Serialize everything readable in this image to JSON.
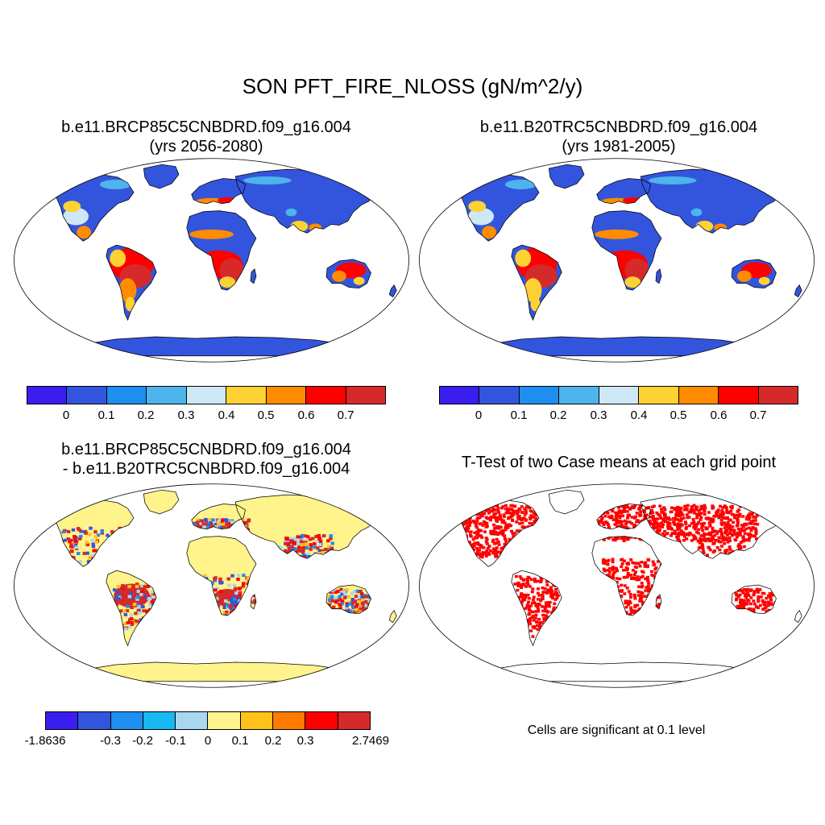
{
  "main_title": "SON PFT_FIRE_NLOSS (gN/m^2/y)",
  "colors": {
    "seq": [
      "#3a1ef0",
      "#3355dd",
      "#1e8ef0",
      "#4db4ec",
      "#cfe8f8",
      "#ffd233",
      "#ff8c00",
      "#ff0000",
      "#d62a2a"
    ],
    "diff": [
      "#3a1ef0",
      "#3355dd",
      "#1e8ef0",
      "#18b8f0",
      "#a8d8f0",
      "#fff48c",
      "#ffc21a",
      "#ff7a00",
      "#ff0000",
      "#d62a2a"
    ],
    "sig": "#ff0000",
    "land_base_seq": "#3355dd",
    "land_base_diff": "#fff48c"
  },
  "panels": {
    "top_left": {
      "title_line1": "b.e11.BRCP85C5CNBDRD.f09_g16.004",
      "title_line2": "(yrs 2056-2080)",
      "ticks": [
        "0",
        "0.1",
        "0.2",
        "0.3",
        "0.4",
        "0.5",
        "0.6",
        "0.7"
      ]
    },
    "top_right": {
      "title_line1": "b.e11.B20TRC5CNBDRD.f09_g16.004",
      "title_line2": "(yrs 1981-2005)",
      "ticks": [
        "0",
        "0.1",
        "0.2",
        "0.3",
        "0.4",
        "0.5",
        "0.6",
        "0.7"
      ]
    },
    "bottom_left": {
      "title_line1": "b.e11.BRCP85C5CNBDRD.f09_g16.004",
      "title_line2": "- b.e11.B20TRC5CNBDRD.f09_g16.004",
      "ticks": [
        "-1.8636",
        "-0.3",
        "-0.2",
        "-0.1",
        "0",
        "0.1",
        "0.2",
        "0.3",
        "2.7469"
      ]
    },
    "bottom_right": {
      "title_line1": "T-Test of two Case means at each grid point",
      "note": "Cells are significant at 0.1 level"
    }
  }
}
